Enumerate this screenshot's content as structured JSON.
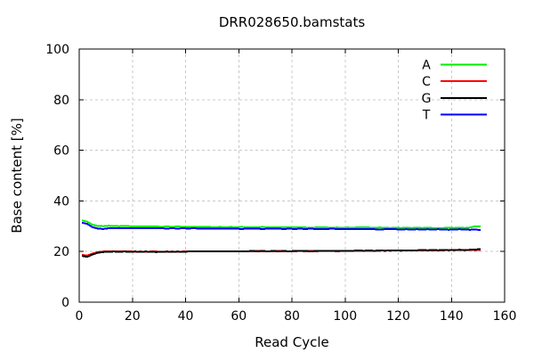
{
  "chart_data": {
    "type": "line",
    "title": "DRR028650.bamstats",
    "xlabel": "Read Cycle",
    "ylabel": "Base content [%]",
    "xlim": [
      0,
      160
    ],
    "ylim": [
      0,
      100
    ],
    "xticks": [
      0,
      20,
      40,
      60,
      80,
      100,
      120,
      140,
      160
    ],
    "yticks": [
      0,
      20,
      40,
      60,
      80,
      100
    ],
    "grid": true,
    "legend_position": "top-right-inside",
    "colors": {
      "background": "#ffffff",
      "frame": "#000000",
      "grid": "#c8c8c8",
      "text": "#000000"
    },
    "x": [
      1,
      3,
      5,
      7,
      9,
      11,
      13,
      15,
      17,
      19,
      21,
      23,
      25,
      27,
      29,
      31,
      33,
      35,
      37,
      39,
      41,
      43,
      45,
      47,
      49,
      51,
      53,
      55,
      57,
      59,
      61,
      63,
      65,
      67,
      69,
      71,
      73,
      75,
      77,
      79,
      81,
      83,
      85,
      87,
      89,
      91,
      93,
      95,
      97,
      99,
      101,
      103,
      105,
      107,
      109,
      111,
      113,
      115,
      117,
      119,
      121,
      123,
      125,
      127,
      129,
      131,
      133,
      135,
      137,
      139,
      141,
      143,
      145,
      147,
      149,
      151
    ],
    "series": [
      {
        "name": "A",
        "color": "#00ee00",
        "values": [
          32.3,
          31.8,
          30.6,
          30.1,
          30.0,
          30.2,
          30.1,
          30.0,
          30.1,
          30.0,
          29.9,
          30.0,
          29.9,
          30.0,
          29.9,
          29.8,
          29.9,
          29.8,
          29.9,
          29.8,
          29.7,
          29.8,
          29.7,
          29.8,
          29.7,
          29.6,
          29.7,
          29.6,
          29.7,
          29.6,
          29.7,
          29.6,
          29.5,
          29.6,
          29.7,
          29.6,
          29.5,
          29.6,
          29.5,
          29.6,
          29.5,
          29.6,
          29.5,
          29.4,
          29.5,
          29.6,
          29.5,
          29.4,
          29.5,
          29.4,
          29.5,
          29.4,
          29.6,
          29.6,
          29.5,
          29.4,
          29.5,
          29.4,
          29.3,
          29.4,
          29.3,
          29.4,
          29.3,
          29.4,
          29.3,
          29.4,
          29.3,
          29.2,
          29.3,
          29.4,
          29.3,
          29.4,
          29.3,
          29.5,
          30.0,
          29.9
        ]
      },
      {
        "name": "C",
        "color": "#ff0000",
        "values": [
          18.7,
          18.4,
          19.2,
          19.8,
          20.0,
          20.1,
          20.0,
          20.1,
          20.0,
          20.1,
          19.9,
          20.0,
          19.9,
          20.0,
          20.0,
          19.9,
          19.9,
          20.0,
          19.9,
          20.0,
          20.1,
          20.0,
          20.1,
          20.0,
          20.1,
          20.0,
          20.1,
          20.0,
          20.1,
          20.0,
          20.1,
          20.0,
          20.1,
          20.2,
          20.1,
          20.0,
          20.1,
          20.2,
          20.1,
          20.0,
          20.1,
          20.2,
          20.1,
          20.2,
          20.1,
          20.2,
          20.3,
          20.2,
          20.1,
          20.2,
          20.3,
          20.2,
          20.3,
          20.2,
          20.3,
          20.2,
          20.3,
          20.4,
          20.3,
          20.4,
          20.3,
          20.4,
          20.5,
          20.4,
          20.5,
          20.4,
          20.5,
          20.4,
          20.5,
          20.6,
          20.5,
          20.6,
          20.5,
          20.6,
          20.5,
          20.6
        ]
      },
      {
        "name": "G",
        "color": "#000000",
        "values": [
          18.3,
          17.9,
          18.8,
          19.5,
          19.8,
          19.9,
          20.0,
          19.9,
          20.0,
          19.9,
          20.0,
          19.9,
          20.0,
          19.9,
          19.8,
          19.9,
          20.0,
          19.9,
          20.0,
          19.9,
          20.0,
          20.1,
          20.0,
          20.1,
          20.0,
          20.1,
          20.0,
          20.1,
          20.0,
          20.1,
          20.0,
          20.1,
          20.2,
          20.1,
          20.2,
          20.1,
          20.2,
          20.1,
          20.2,
          20.1,
          20.2,
          20.3,
          20.2,
          20.1,
          20.2,
          20.3,
          20.2,
          20.3,
          20.2,
          20.3,
          20.2,
          20.3,
          20.4,
          20.3,
          20.4,
          20.3,
          20.4,
          20.3,
          20.4,
          20.5,
          20.4,
          20.5,
          20.4,
          20.5,
          20.6,
          20.5,
          20.6,
          20.5,
          20.6,
          20.5,
          20.6,
          20.7,
          20.6,
          20.7,
          20.8,
          21.0
        ]
      },
      {
        "name": "T",
        "color": "#0000ff",
        "values": [
          31.4,
          30.9,
          29.6,
          29.1,
          28.9,
          29.2,
          29.3,
          29.2,
          29.3,
          29.2,
          29.3,
          29.2,
          29.3,
          29.2,
          29.3,
          29.2,
          29.1,
          29.2,
          29.1,
          29.2,
          29.1,
          29.2,
          29.1,
          29.0,
          29.1,
          29.0,
          29.1,
          29.0,
          29.1,
          29.0,
          28.9,
          29.0,
          29.1,
          29.0,
          28.9,
          29.0,
          29.1,
          29.0,
          28.9,
          29.0,
          28.9,
          29.0,
          28.9,
          29.0,
          28.9,
          28.8,
          28.9,
          29.0,
          28.9,
          28.8,
          28.9,
          28.8,
          28.9,
          28.8,
          28.9,
          28.8,
          28.7,
          28.8,
          28.9,
          28.8,
          28.7,
          28.8,
          28.7,
          28.8,
          28.7,
          28.8,
          28.7,
          28.8,
          28.7,
          28.6,
          28.7,
          28.8,
          28.7,
          28.6,
          28.7,
          28.5
        ]
      }
    ]
  }
}
